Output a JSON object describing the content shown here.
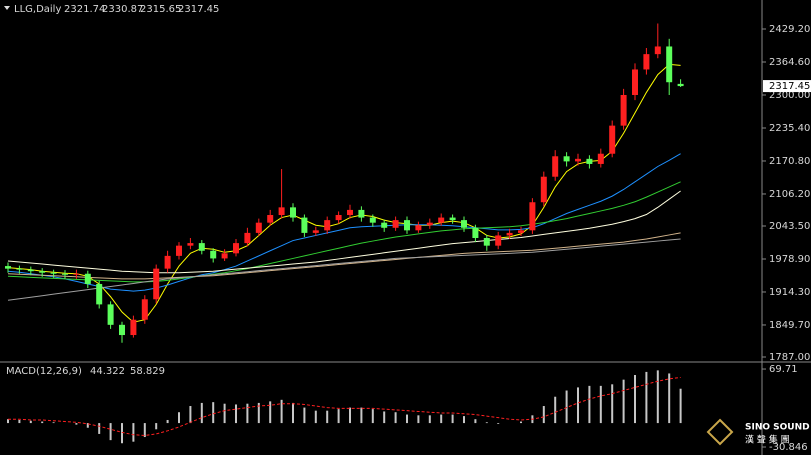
{
  "chart_data": [
    {
      "type": "candlestick",
      "title": "LLG,Daily",
      "open": [
        1965,
        1960,
        1958,
        1955,
        1952,
        1950,
        1948,
        1950,
        1930,
        1890,
        1850,
        1830,
        1860,
        1900,
        1960,
        1985,
        2005,
        2010,
        1995,
        1980,
        1990,
        2010,
        2030,
        2050,
        2065,
        2080,
        2060,
        2030,
        2035,
        2055,
        2065,
        2075,
        2060,
        2050,
        2040,
        2055,
        2035,
        2045,
        2050,
        2060,
        2055,
        2040,
        2020,
        2005,
        2025,
        2030,
        2035,
        2090,
        2140,
        2180,
        2170,
        2175,
        2165,
        2185,
        2240,
        2300,
        2350,
        2380,
        2395,
        2321.74
      ],
      "high": [
        1972,
        1966,
        1964,
        1961,
        1958,
        1957,
        1958,
        1956,
        1936,
        1896,
        1856,
        1868,
        1908,
        1968,
        1995,
        2012,
        2020,
        2016,
        2000,
        1998,
        2018,
        2040,
        2058,
        2075,
        2155,
        2088,
        2066,
        2042,
        2062,
        2072,
        2085,
        2082,
        2066,
        2056,
        2062,
        2062,
        2052,
        2058,
        2068,
        2066,
        2062,
        2046,
        2026,
        2032,
        2038,
        2042,
        2098,
        2150,
        2192,
        2188,
        2185,
        2182,
        2195,
        2250,
        2312,
        2362,
        2392,
        2440,
        2410,
        2330.87
      ],
      "low": [
        1952,
        1950,
        1947,
        1944,
        1942,
        1940,
        1940,
        1922,
        1882,
        1842,
        1815,
        1825,
        1852,
        1892,
        1952,
        1978,
        1998,
        1988,
        1972,
        1975,
        1984,
        2004,
        2024,
        2044,
        2058,
        2052,
        2022,
        2024,
        2028,
        2048,
        2058,
        2052,
        2042,
        2032,
        2034,
        2028,
        2030,
        2038,
        2044,
        2048,
        2032,
        2012,
        1995,
        1998,
        2018,
        2024,
        2028,
        2082,
        2132,
        2160,
        2162,
        2156,
        2158,
        2178,
        2232,
        2290,
        2340,
        2372,
        2300,
        2315.65
      ],
      "close": [
        1960,
        1958,
        1955,
        1952,
        1950,
        1948,
        1950,
        1930,
        1890,
        1850,
        1830,
        1860,
        1900,
        1960,
        1985,
        2005,
        2010,
        1995,
        1980,
        1990,
        2010,
        2030,
        2050,
        2065,
        2080,
        2060,
        2030,
        2035,
        2055,
        2065,
        2075,
        2060,
        2050,
        2040,
        2055,
        2035,
        2045,
        2050,
        2060,
        2055,
        2040,
        2020,
        2005,
        2025,
        2030,
        2035,
        2090,
        2140,
        2180,
        2170,
        2175,
        2165,
        2185,
        2240,
        2300,
        2350,
        2380,
        2395,
        2325,
        2317.45
      ],
      "up_color": "#ff2020",
      "down_color": "#5cff5c",
      "series": [
        {
          "color": "#ffff00",
          "values": [
            1962,
            1960,
            1958,
            1955,
            1953,
            1951,
            1950,
            1945,
            1930,
            1905,
            1875,
            1855,
            1860,
            1890,
            1930,
            1965,
            1990,
            2000,
            1998,
            1992,
            1995,
            2005,
            2025,
            2045,
            2060,
            2065,
            2055,
            2045,
            2042,
            2048,
            2060,
            2065,
            2062,
            2055,
            2050,
            2048,
            2045,
            2045,
            2050,
            2053,
            2050,
            2040,
            2025,
            2020,
            2022,
            2028,
            2045,
            2080,
            2120,
            2150,
            2165,
            2170,
            2172,
            2190,
            2225,
            2265,
            2305,
            2340,
            2360,
            2358
          ]
        },
        {
          "color": "#1e90ff",
          "values": [
            1955,
            1953,
            1950,
            1947,
            1944,
            1940,
            1935,
            1930,
            1925,
            1920,
            1918,
            1916,
            1918,
            1922,
            1928,
            1935,
            1942,
            1948,
            1952,
            1958,
            1965,
            1975,
            1985,
            1995,
            2005,
            2015,
            2020,
            2025,
            2030,
            2035,
            2040,
            2042,
            2043,
            2044,
            2045,
            2046,
            2046,
            2046,
            2045,
            2044,
            2042,
            2040,
            2038,
            2036,
            2036,
            2037,
            2040,
            2048,
            2058,
            2068,
            2076,
            2084,
            2092,
            2102,
            2115,
            2130,
            2145,
            2160,
            2172,
            2185
          ]
        },
        {
          "color": "#32cd32",
          "values": [
            1945,
            1944,
            1943,
            1942,
            1941,
            1940,
            1939,
            1938,
            1937,
            1936,
            1935,
            1934,
            1934,
            1935,
            1937,
            1940,
            1943,
            1946,
            1949,
            1952,
            1956,
            1960,
            1965,
            1970,
            1975,
            1980,
            1985,
            1990,
            1995,
            2000,
            2005,
            2010,
            2014,
            2018,
            2022,
            2025,
            2028,
            2031,
            2034,
            2036,
            2038,
            2039,
            2040,
            2041,
            2042,
            2044,
            2047,
            2050,
            2054,
            2058,
            2063,
            2068,
            2073,
            2078,
            2084,
            2091,
            2100,
            2110,
            2120,
            2130
          ]
        },
        {
          "color": "#ffffe0",
          "values": [
            1975,
            1973,
            1971,
            1969,
            1967,
            1965,
            1963,
            1961,
            1959,
            1957,
            1955,
            1954,
            1953,
            1952,
            1952,
            1952,
            1953,
            1954,
            1955,
            1957,
            1959,
            1961,
            1963,
            1965,
            1967,
            1969,
            1971,
            1973,
            1976,
            1979,
            1982,
            1985,
            1988,
            1991,
            1994,
            1997,
            2000,
            2003,
            2006,
            2009,
            2011,
            2013,
            2015,
            2017,
            2019,
            2021,
            2024,
            2027,
            2030,
            2033,
            2036,
            2039,
            2043,
            2047,
            2052,
            2058,
            2066,
            2080,
            2096,
            2112
          ]
        },
        {
          "color": "#d2b48c",
          "values": [
            1950,
            1949,
            1948,
            1947,
            1946,
            1945,
            1944,
            1943,
            1942,
            1941,
            1940,
            1940,
            1940,
            1941,
            1942,
            1943,
            1944,
            1945,
            1946,
            1948,
            1950,
            1952,
            1954,
            1956,
            1958,
            1960,
            1962,
            1964,
            1966,
            1968,
            1970,
            1972,
            1974,
            1976,
            1978,
            1980,
            1982,
            1984,
            1986,
            1988,
            1990,
            1991,
            1992,
            1993,
            1994,
            1995,
            1996,
            1998,
            2000,
            2002,
            2004,
            2006,
            2008,
            2010,
            2012,
            2015,
            2018,
            2022,
            2026,
            2030
          ]
        },
        {
          "color": "#a0a0a0",
          "values": [
            1898,
            1901,
            1904,
            1907,
            1910,
            1913,
            1916,
            1919,
            1922,
            1925,
            1928,
            1931,
            1934,
            1937,
            1940,
            1942,
            1944,
            1946,
            1948,
            1950,
            1952,
            1954,
            1956,
            1958,
            1960,
            1962,
            1964,
            1966,
            1968,
            1970,
            1972,
            1974,
            1976,
            1978,
            1980,
            1981,
            1982,
            1983,
            1984,
            1985,
            1986,
            1987,
            1988,
            1989,
            1990,
            1991,
            1992,
            1994,
            1996,
            1998,
            2000,
            2002,
            2004,
            2006,
            2008,
            2010,
            2012,
            2014,
            2016,
            2018
          ]
        }
      ],
      "ylim": [
        1777.2,
        2486.0
      ],
      "yticks": [
        {
          "value": 2429.2,
          "label": "2429.20"
        },
        {
          "value": 2364.6,
          "label": "2364.60"
        },
        {
          "value": 2300,
          "label": "2300.00"
        },
        {
          "value": 2235.4,
          "label": "2235.40"
        },
        {
          "value": 2170.8,
          "label": "2170.80"
        },
        {
          "value": 2106.2,
          "label": "2106.20"
        },
        {
          "value": 2043.5,
          "label": "2043.50"
        },
        {
          "value": 1978.9,
          "label": "1978.90"
        },
        {
          "value": 1914.3,
          "label": "1914.30"
        },
        {
          "value": 1849.7,
          "label": "1849.70"
        },
        {
          "value": 1787,
          "label": "1787.00"
        }
      ],
      "grid": false
    },
    {
      "type": "macd",
      "title": "MACD(12,26,9)",
      "histogram": {
        "color": "#c8c8c8",
        "values": [
          5,
          4,
          3,
          2,
          1,
          0,
          -2,
          -6,
          -14,
          -22,
          -26,
          -24,
          -18,
          -8,
          4,
          14,
          22,
          26,
          27,
          25,
          24,
          25,
          26,
          28,
          30,
          26,
          20,
          16,
          16,
          18,
          20,
          20,
          18,
          15,
          14,
          11,
          10,
          10,
          11,
          11,
          9,
          5,
          1,
          -1,
          0,
          2,
          10,
          22,
          34,
          42,
          46,
          48,
          48,
          50,
          56,
          62,
          66,
          68,
          64,
          44.322
        ]
      },
      "signal": {
        "color": "#ff2020",
        "values": [
          5,
          5,
          4,
          4,
          3,
          2,
          1,
          -1,
          -4,
          -8,
          -12,
          -15,
          -16,
          -14,
          -10,
          -5,
          1,
          7,
          12,
          16,
          18,
          20,
          22,
          23,
          25,
          25,
          24,
          22,
          20,
          19,
          19,
          19,
          19,
          18,
          17,
          16,
          15,
          14,
          13,
          13,
          12,
          11,
          9,
          7,
          5,
          4,
          5,
          8,
          14,
          20,
          26,
          31,
          35,
          38,
          42,
          46,
          50,
          54,
          57,
          58.829
        ]
      },
      "ylim": [
        -37.3,
        76.2
      ],
      "yticks": [
        69.71,
        -30.846
      ]
    }
  ],
  "logo": {
    "name": "SINO SOUND",
    "subtitle": "漢 聲 集 團"
  }
}
